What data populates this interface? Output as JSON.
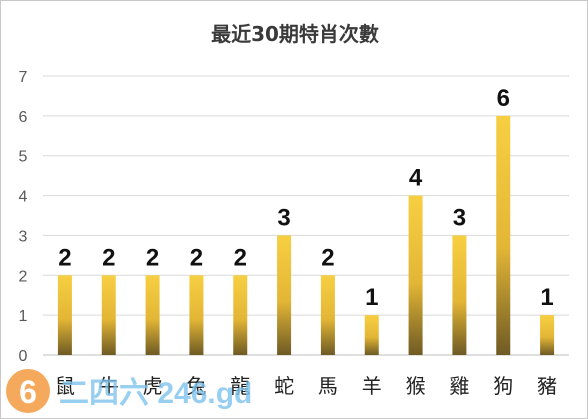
{
  "chart_data": {
    "type": "bar",
    "title": "最近30期特肖次數",
    "categories": [
      "鼠",
      "牛",
      "虎",
      "兔",
      "龍",
      "蛇",
      "馬",
      "羊",
      "猴",
      "雞",
      "狗",
      "豬"
    ],
    "values": [
      2,
      2,
      2,
      2,
      2,
      3,
      2,
      1,
      4,
      3,
      6,
      1
    ],
    "ylim": [
      0,
      7
    ],
    "yticks": [
      0,
      1,
      2,
      3,
      4,
      5,
      6,
      7
    ],
    "grid": true,
    "legend": "none",
    "xlabel": "",
    "ylabel": ""
  },
  "colors": {
    "bar_top": "#f7cf42",
    "bar_bottom": "#6e5a24",
    "grid": "#d9d9d9"
  },
  "watermark": {
    "text": "二四六 246.gd",
    "logo_digit": "6"
  }
}
